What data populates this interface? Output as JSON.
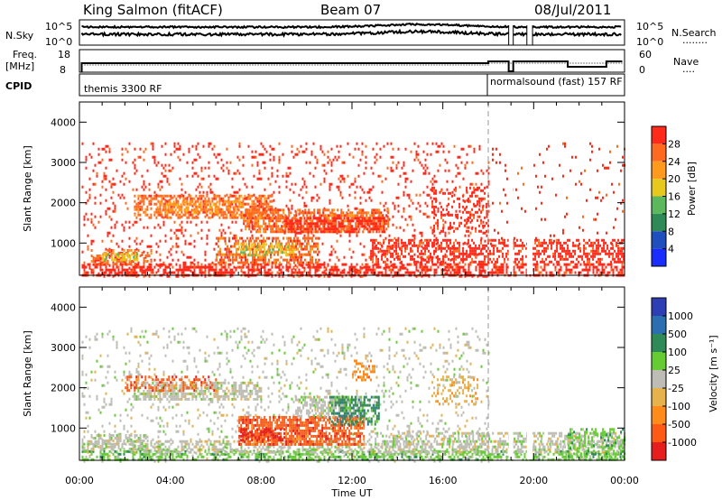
{
  "header": {
    "station": "King Salmon (fitACF)",
    "beam": "Beam 07",
    "date": "08/Jul/2011"
  },
  "noise_panel": {
    "left_label": "N.Sky",
    "left_ticks": [
      "10^5",
      "10^0"
    ],
    "right_ticks": [
      "10^5",
      "10^0"
    ],
    "right_label": "N.Search",
    "right_label_dots": "........"
  },
  "freq_panel": {
    "left_label_1": "Freq.",
    "left_label_2": "[MHz]",
    "left_ticks": [
      "18",
      "8"
    ],
    "right_ticks": [
      "60",
      "0"
    ],
    "right_label": "Nave",
    "right_label_dots": "...."
  },
  "cpid": {
    "label": "CPID",
    "segments": [
      {
        "text": "themis 3300 RF",
        "start_hour": 0
      },
      {
        "text": "normalsound (fast) 157 RF",
        "start_hour": 18
      }
    ]
  },
  "x_axis": {
    "label": "Time UT",
    "ticks": [
      "00:00",
      "04:00",
      "08:00",
      "12:00",
      "16:00",
      "20:00",
      "00:00"
    ]
  },
  "power_colorbar": {
    "label": "Power [dB]",
    "ticks": [
      "28",
      "24",
      "20",
      "16",
      "12",
      "8",
      "4"
    ],
    "colors": [
      "#ff2a1a",
      "#ff6a1e",
      "#ff9a1e",
      "#e6c81e",
      "#5cb85c",
      "#2e8b57",
      "#1f4fbf",
      "#1a2dff"
    ]
  },
  "velocity_colorbar": {
    "label": "Velocity [m s⁻¹]",
    "ticks": [
      "1000",
      "500",
      "100",
      "25",
      "-25",
      "-100",
      "-500",
      "-1000"
    ],
    "colors": [
      "#2e3fb5",
      "#2a6fb0",
      "#2e8b57",
      "#66cc33",
      "#bdbdb5",
      "#e6b24c",
      "#ff8c1a",
      "#ff5a14",
      "#e61e1e"
    ]
  },
  "chart_data": [
    {
      "type": "heatmap",
      "title": "Power",
      "ylabel": "Slant Range [km]",
      "xlabel": "",
      "xlim": [
        0,
        24
      ],
      "ylim": [
        200,
        4500
      ],
      "y_ticks": [
        "4000",
        "3000",
        "2000",
        "1000"
      ],
      "y_tick_values": [
        4000,
        3000,
        2000,
        1000
      ],
      "regions": [
        {
          "t0": 0.1,
          "t1": 18.0,
          "r0": 200,
          "r1": 3500,
          "level": 7,
          "density": 0.12
        },
        {
          "t0": 0.1,
          "t1": 24.0,
          "r0": 200,
          "r1": 500,
          "level": 7,
          "density": 0.55
        },
        {
          "t0": 2.4,
          "t1": 8.5,
          "r0": 1650,
          "r1": 2200,
          "level": 6,
          "density": 0.55
        },
        {
          "t0": 3.4,
          "t1": 7.2,
          "r0": 1750,
          "r1": 2050,
          "level": 5,
          "density": 0.45
        },
        {
          "t0": 7.2,
          "t1": 13.6,
          "r0": 1250,
          "r1": 1850,
          "level": 6,
          "density": 0.6
        },
        {
          "t0": 9.0,
          "t1": 13.4,
          "r0": 1300,
          "r1": 1650,
          "level": 7,
          "density": 0.6
        },
        {
          "t0": 6.0,
          "t1": 10.5,
          "r0": 500,
          "r1": 1150,
          "level": 6,
          "density": 0.5
        },
        {
          "t0": 7.0,
          "t1": 9.5,
          "r0": 700,
          "r1": 1000,
          "level": 4,
          "density": 0.55
        },
        {
          "t0": 0.5,
          "t1": 3.2,
          "r0": 450,
          "r1": 850,
          "level": 6,
          "density": 0.45
        },
        {
          "t0": 1.0,
          "t1": 2.6,
          "r0": 600,
          "r1": 750,
          "level": 4,
          "density": 0.5
        },
        {
          "t0": 15.5,
          "t1": 18.0,
          "r0": 1300,
          "r1": 2400,
          "level": 7,
          "density": 0.3
        },
        {
          "t0": 12.8,
          "t1": 24.0,
          "r0": 500,
          "r1": 1100,
          "level": 7,
          "density": 0.5
        },
        {
          "t0": 18.0,
          "t1": 24.0,
          "r0": 1000,
          "r1": 3500,
          "level": 7,
          "density": 0.04
        }
      ]
    },
    {
      "type": "heatmap",
      "title": "Velocity",
      "ylabel": "Slant Range [km]",
      "xlabel": "Time UT",
      "xlim": [
        0,
        24
      ],
      "ylim": [
        200,
        4500
      ],
      "y_ticks": [
        "4000",
        "3000",
        "2000",
        "1000"
      ],
      "y_tick_values": [
        4000,
        3000,
        2000,
        1000
      ],
      "regions": [
        {
          "t0": 0.1,
          "t1": 18.0,
          "r0": 200,
          "r1": 3500,
          "level": 4,
          "density": 0.1
        },
        {
          "t0": 0.1,
          "t1": 24.0,
          "r0": 200,
          "r1": 450,
          "level": 3,
          "density": 0.5
        },
        {
          "t0": 0.1,
          "t1": 24.0,
          "r0": 400,
          "r1": 700,
          "level": 4,
          "density": 0.45
        },
        {
          "t0": 2.4,
          "t1": 8.0,
          "r0": 1700,
          "r1": 2150,
          "level": 4,
          "density": 0.6
        },
        {
          "t0": 2.0,
          "t1": 6.0,
          "r0": 1900,
          "r1": 2300,
          "level": 7,
          "density": 0.35
        },
        {
          "t0": 7.0,
          "t1": 12.5,
          "r0": 600,
          "r1": 1300,
          "level": 7,
          "density": 0.7
        },
        {
          "t0": 7.0,
          "t1": 9.0,
          "r0": 700,
          "r1": 1000,
          "level": 8,
          "density": 0.45
        },
        {
          "t0": 9.5,
          "t1": 12.5,
          "r0": 1300,
          "r1": 1800,
          "level": 4,
          "density": 0.6
        },
        {
          "t0": 11.0,
          "t1": 13.2,
          "r0": 1100,
          "r1": 1800,
          "level": 2,
          "density": 0.5
        },
        {
          "t0": 0.5,
          "t1": 3.0,
          "r0": 450,
          "r1": 850,
          "level": 4,
          "density": 0.55
        },
        {
          "t0": 15.5,
          "t1": 17.5,
          "r0": 1600,
          "r1": 2300,
          "level": 5,
          "density": 0.3
        },
        {
          "t0": 13.0,
          "t1": 24.0,
          "r0": 500,
          "r1": 900,
          "level": 4,
          "density": 0.45
        },
        {
          "t0": 21.5,
          "t1": 24.0,
          "r0": 250,
          "r1": 1000,
          "level": 3,
          "density": 0.35
        },
        {
          "t0": 12.0,
          "t1": 13.0,
          "r0": 2200,
          "r1": 2700,
          "level": 6,
          "density": 0.4
        }
      ]
    }
  ]
}
